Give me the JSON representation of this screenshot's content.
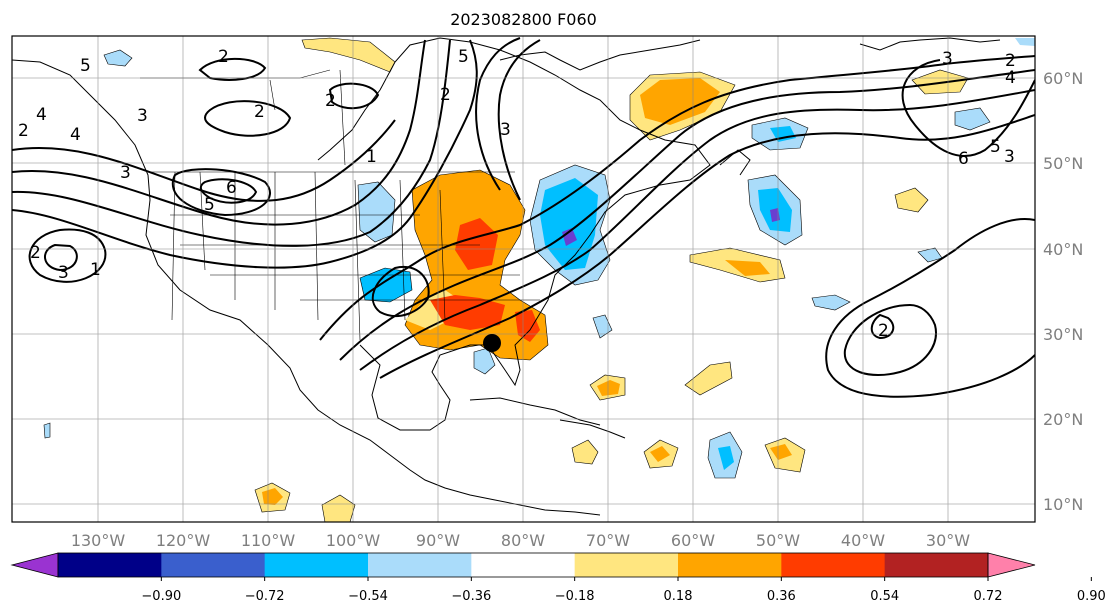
{
  "title": "2023082800 F060",
  "longitude_labels": [
    "130°W",
    "120°W",
    "110°W",
    "100°W",
    "90°W",
    "80°W",
    "70°W",
    "60°W",
    "50°W",
    "40°W",
    "30°W"
  ],
  "latitude_labels": [
    "60°N",
    "50°N",
    "40°N",
    "30°N",
    "20°N",
    "10°N"
  ],
  "colorbar": {
    "ticks": [
      "−0.90",
      "−0.72",
      "−0.54",
      "−0.36",
      "−0.18",
      "0.18",
      "0.36",
      "0.54",
      "0.72",
      "0.90"
    ],
    "colors": [
      "#9a33d1",
      "#000088",
      "#3a5fcd",
      "#00bfff",
      "#aadcfa",
      "#ffffff",
      "#ffe680",
      "#ffa500",
      "#ff3c00",
      "#b22222",
      "#ff80aa"
    ]
  },
  "contour_labels": [
    "2",
    "5",
    "4",
    "4",
    "3",
    "2",
    "2",
    "2",
    "3",
    "1",
    "5",
    "6",
    "3",
    "2",
    "1",
    "2",
    "5",
    "3",
    "3",
    "2",
    "4",
    "6",
    "5",
    "3",
    "2"
  ],
  "storm_marker": "black-dot"
}
